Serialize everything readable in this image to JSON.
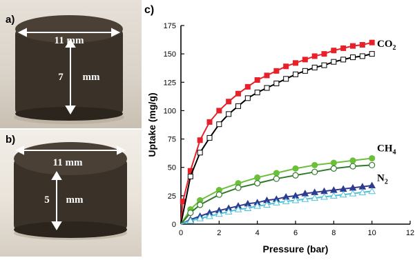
{
  "panels": {
    "a": {
      "letter": "a)",
      "diameter_label": "11 mm",
      "height_label": "mm",
      "height_value": "7"
    },
    "b": {
      "letter": "b)",
      "diameter_label": "11 mm",
      "height_label": "mm",
      "height_value": "5"
    },
    "c": {
      "letter": "c)"
    }
  },
  "chart_data": {
    "type": "line",
    "xlabel": "Pressure (bar)",
    "ylabel": "Uptake (mg/g)",
    "xlim": [
      0,
      12
    ],
    "ylim": [
      0,
      175
    ],
    "xticks": [
      0,
      2,
      4,
      6,
      8,
      10,
      12
    ],
    "yticks": [
      0,
      25,
      50,
      75,
      100,
      125,
      150,
      175
    ],
    "grid": false,
    "legend": "none",
    "series_labels": [
      {
        "main": "CO",
        "sub": "2",
        "y": 150
      },
      {
        "main": "CH",
        "sub": "4",
        "y": 58
      },
      {
        "main": "N",
        "sub": "2",
        "y": 32
      }
    ],
    "series": [
      {
        "gas": "CO2",
        "variant": "filled",
        "marker": "square",
        "color": "#e8202a",
        "line_color": "#e8202a",
        "x": [
          0,
          0.1,
          0.5,
          1.0,
          1.5,
          2.0,
          2.5,
          3.0,
          3.5,
          4.0,
          4.5,
          5.0,
          5.5,
          6.0,
          6.5,
          7.0,
          7.5,
          8.0,
          8.5,
          9.0,
          9.5,
          10.0
        ],
        "y": [
          0,
          20,
          47,
          74,
          90,
          100,
          108,
          115,
          121,
          127,
          131,
          135,
          139,
          142,
          145,
          148,
          150,
          153,
          155,
          157,
          158,
          160
        ]
      },
      {
        "gas": "CO2",
        "variant": "open",
        "marker": "square",
        "color": "#000000",
        "line_color": "#000000",
        "x": [
          0,
          0.5,
          1.0,
          1.5,
          2.0,
          2.5,
          3.0,
          3.5,
          4.0,
          4.5,
          5.0,
          5.5,
          6.0,
          6.5,
          7.0,
          7.5,
          8.0,
          8.5,
          9.0,
          9.5,
          10.0
        ],
        "y": [
          0,
          42,
          63,
          76,
          88,
          97,
          104,
          111,
          116,
          120,
          124,
          128,
          132,
          135,
          138,
          140,
          143,
          145,
          147,
          148,
          150
        ]
      },
      {
        "gas": "CH4",
        "variant": "filled",
        "marker": "circle",
        "color": "#6bbf3a",
        "line_color": "#6bbf3a",
        "x": [
          0,
          0.5,
          1.0,
          2.0,
          3.0,
          4.0,
          5.0,
          6.0,
          7.0,
          8.0,
          9.0,
          10.0
        ],
        "y": [
          0,
          13,
          21,
          30,
          36,
          41,
          45,
          49,
          52,
          54,
          56,
          58
        ]
      },
      {
        "gas": "CH4",
        "variant": "open",
        "marker": "circle",
        "color": "#2f7a2a",
        "line_color": "#2f7a2a",
        "x": [
          0,
          0.5,
          1.0,
          2.0,
          3.0,
          4.0,
          5.0,
          6.0,
          7.0,
          8.0,
          9.0,
          10.0
        ],
        "y": [
          0,
          10,
          17,
          26,
          32,
          36,
          40,
          43,
          46,
          49,
          51,
          52
        ]
      },
      {
        "gas": "N2",
        "variant": "filled",
        "marker": "triangle",
        "color": "#2e3b8f",
        "line_color": "#2e3b8f",
        "x": [
          0,
          0.5,
          1.0,
          1.5,
          2.0,
          2.5,
          3.0,
          3.5,
          4.0,
          4.5,
          5.0,
          5.5,
          6.0,
          6.5,
          7.0,
          7.5,
          8.0,
          8.5,
          9.0,
          9.5,
          10.0
        ],
        "y": [
          0,
          4,
          7,
          10,
          12,
          14,
          16,
          18,
          19,
          21,
          22,
          24,
          25,
          27,
          28,
          29,
          30,
          31,
          32,
          33,
          34
        ]
      },
      {
        "gas": "N2",
        "variant": "open",
        "marker": "triangle",
        "color": "#4fc1d8",
        "line_color": "#4fc1d8",
        "x": [
          0,
          0.5,
          1.0,
          1.5,
          2.0,
          2.5,
          3.0,
          3.5,
          4.0,
          4.5,
          5.0,
          5.5,
          6.0,
          6.5,
          7.0,
          7.5,
          8.0,
          8.5,
          9.0,
          9.5,
          10.0
        ],
        "y": [
          0,
          3,
          5,
          7,
          9,
          11,
          13,
          14,
          16,
          17,
          19,
          20,
          21,
          22,
          23,
          24,
          25,
          26,
          27,
          28,
          29
        ]
      }
    ]
  },
  "colors": {
    "sample_body": "#3a3128",
    "sample_top": "#4a4036",
    "arrow": "#ffffff",
    "axis": "#000000"
  }
}
